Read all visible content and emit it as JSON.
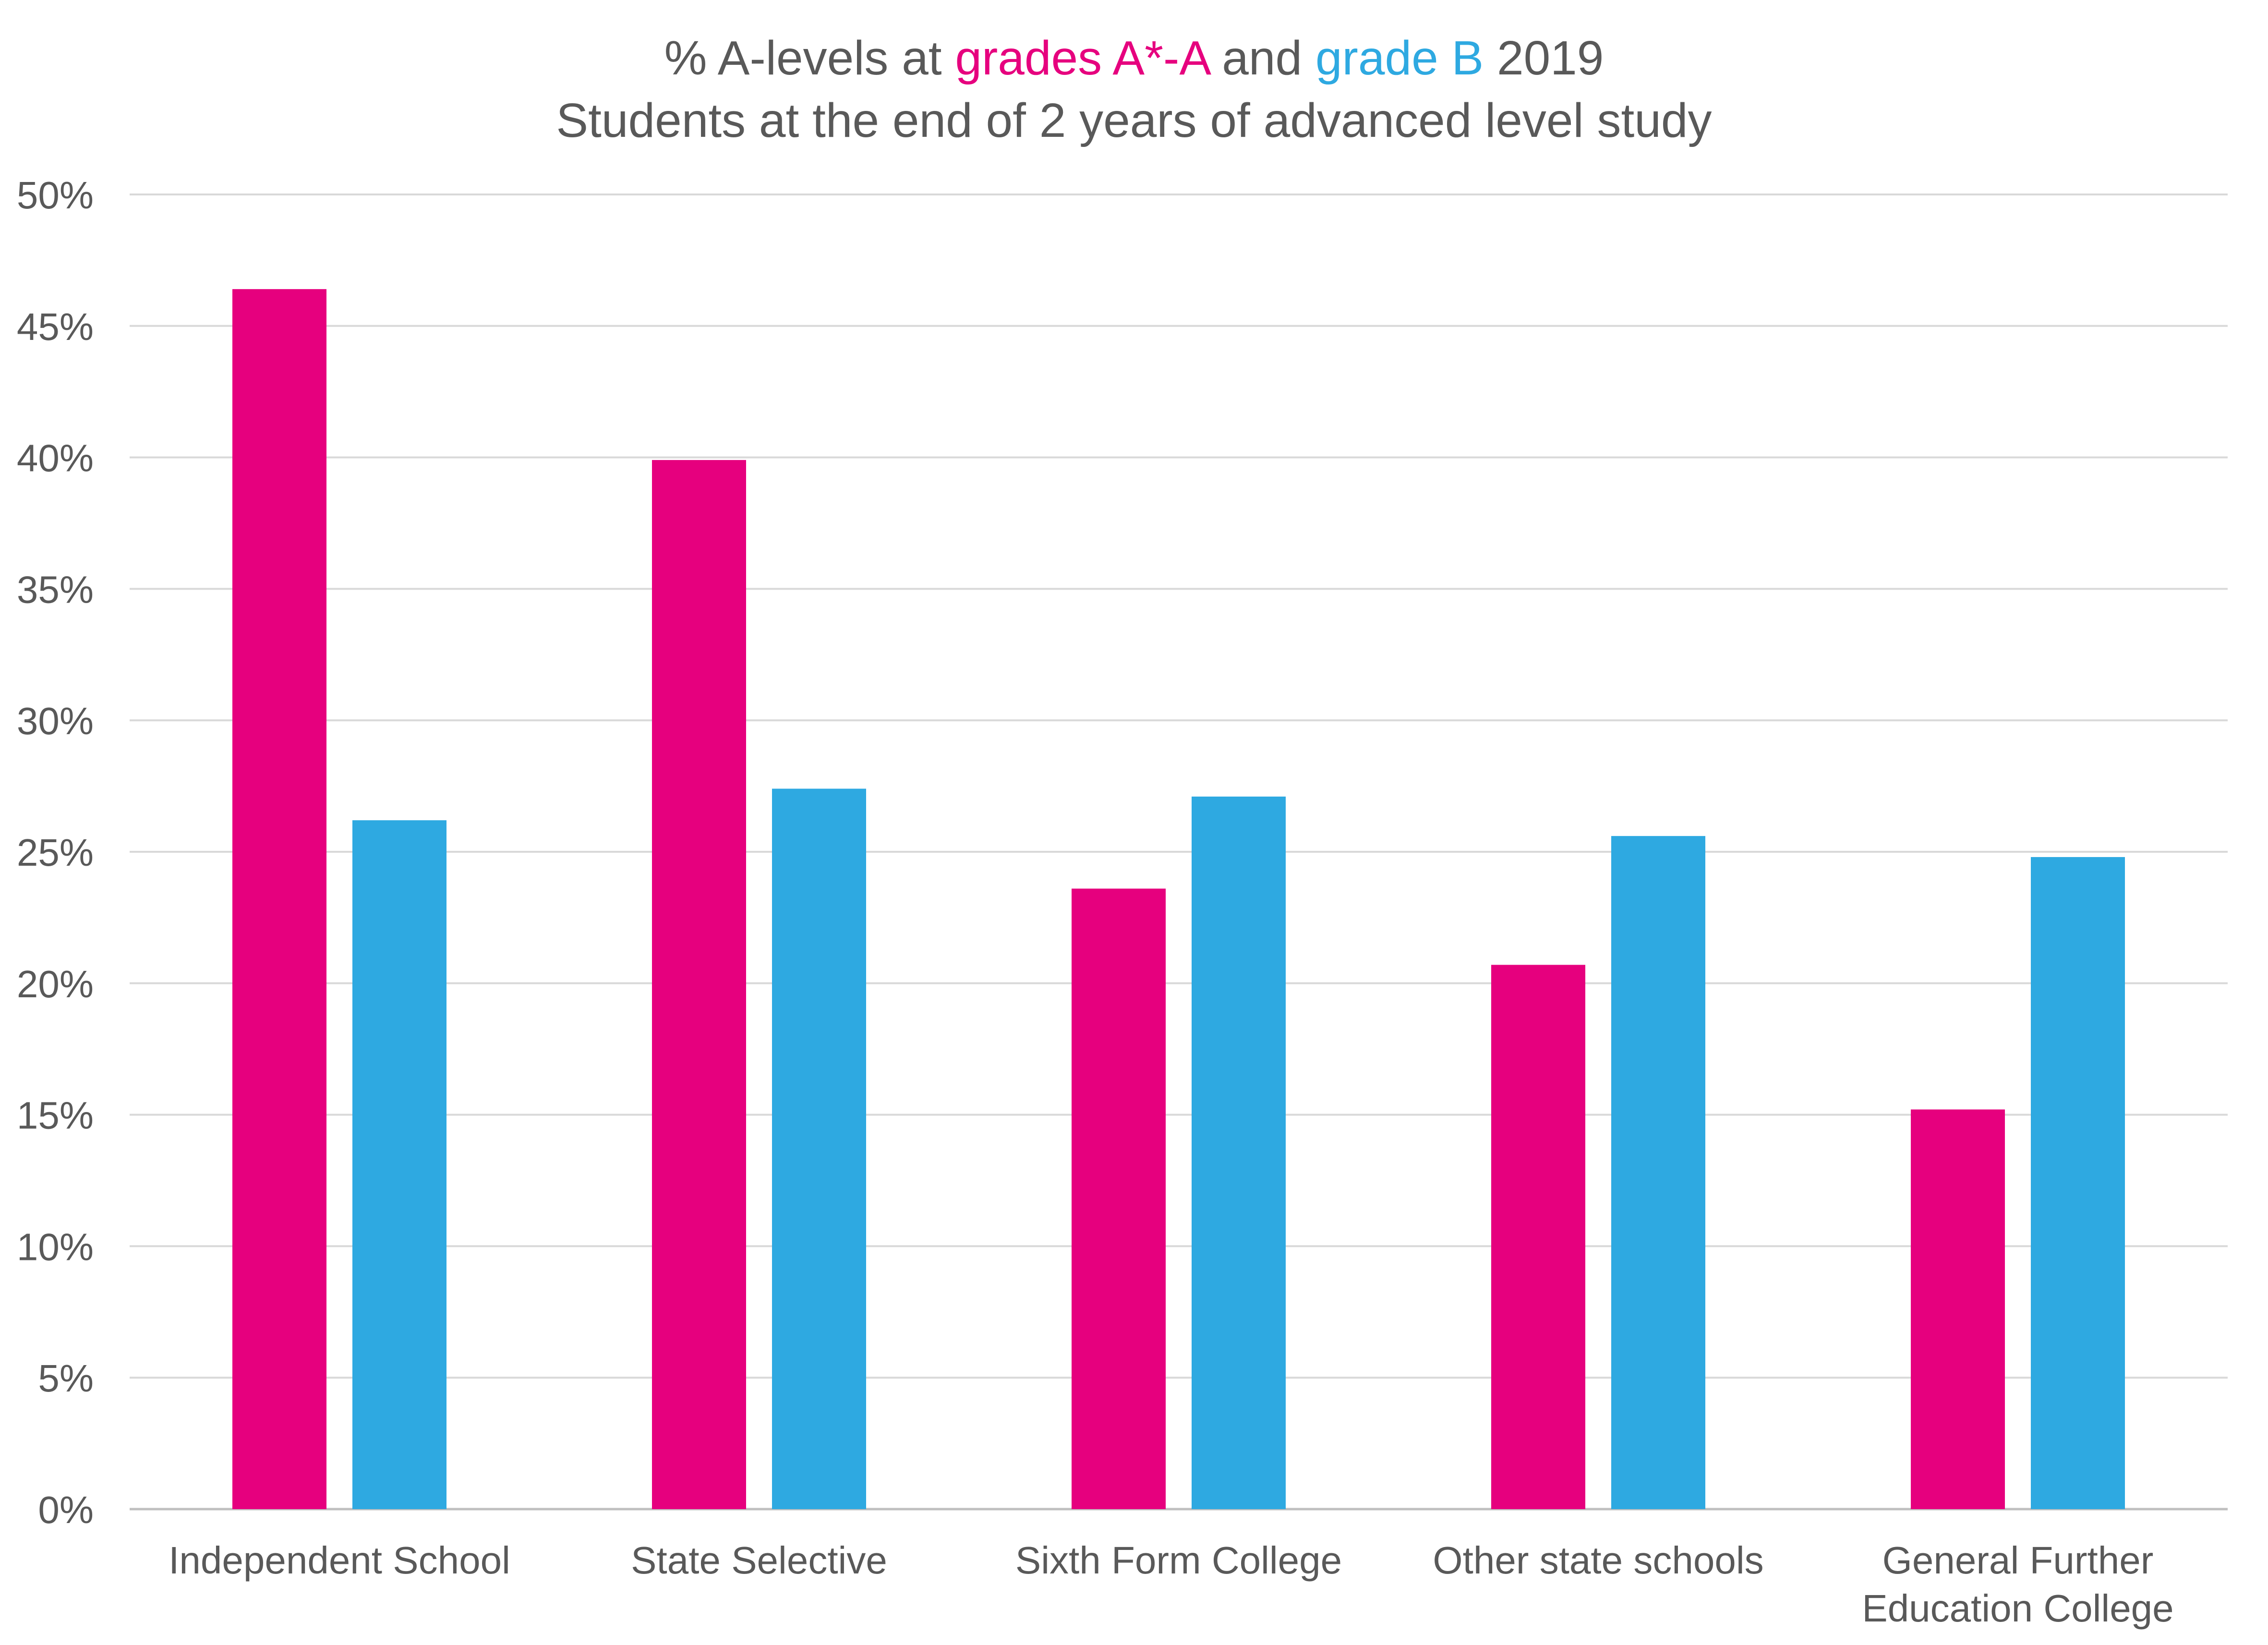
{
  "chart_data": {
    "type": "bar",
    "title": {
      "line1": {
        "prefix": "% A-levels at ",
        "highlight1": "grades A*-A",
        "middle": " and ",
        "highlight2": "grade B",
        "suffix": " 2019"
      },
      "line2": "Students at the  end of 2 years of advanced level study"
    },
    "categories": [
      [
        "Independent School"
      ],
      [
        "State Selective"
      ],
      [
        "Sixth Form College"
      ],
      [
        "Other state schools"
      ],
      [
        "General Further",
        "Education College"
      ]
    ],
    "series": [
      {
        "name": "grades A*-A",
        "color": "#E6007E",
        "values": [
          46.4,
          39.9,
          23.6,
          20.7,
          15.2
        ]
      },
      {
        "name": "grade B",
        "color": "#2EA9E1",
        "values": [
          26.2,
          27.4,
          27.1,
          25.6,
          24.8
        ]
      }
    ],
    "ylim": [
      0,
      50
    ],
    "ytick_step": 5,
    "ytick_labels": [
      "0%",
      "5%",
      "10%",
      "15%",
      "20%",
      "25%",
      "30%",
      "35%",
      "40%",
      "45%",
      "50%"
    ],
    "grid": true,
    "xlabel": "",
    "ylabel": "",
    "legend": "none"
  },
  "colors": {
    "text": "#595959",
    "grid": "#D9D9D9",
    "axis": "#BFBFBF"
  }
}
